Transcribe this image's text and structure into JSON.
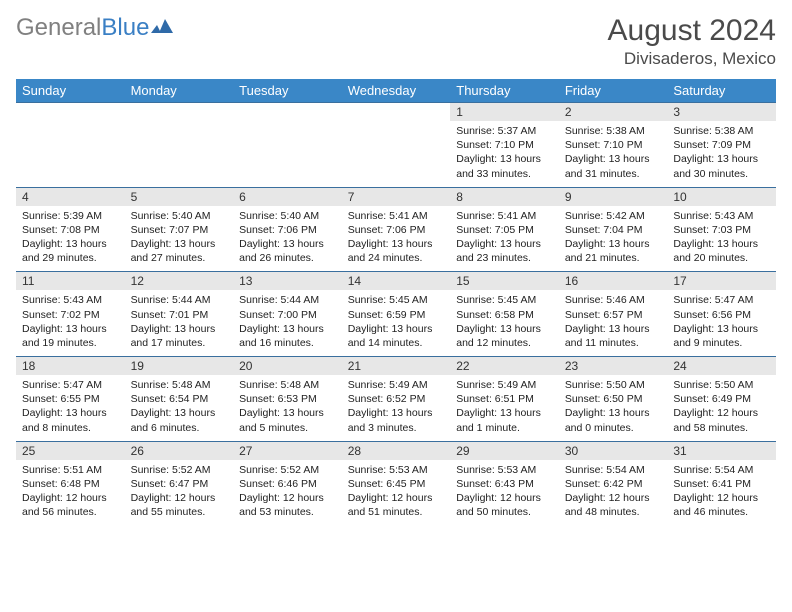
{
  "logo": {
    "text1": "General",
    "text2": "Blue"
  },
  "title": {
    "month": "August 2024",
    "location": "Divisaderos, Mexico"
  },
  "colors": {
    "header_bg": "#3a87c7",
    "header_fg": "#ffffff",
    "row_border": "#3a6f9e",
    "daynum_bg": "#e7e7e7",
    "logo_gray": "#808080",
    "logo_blue": "#3a7fc4"
  },
  "weekdays": [
    "Sunday",
    "Monday",
    "Tuesday",
    "Wednesday",
    "Thursday",
    "Friday",
    "Saturday"
  ],
  "weeks": [
    [
      {
        "n": "",
        "lines": []
      },
      {
        "n": "",
        "lines": []
      },
      {
        "n": "",
        "lines": []
      },
      {
        "n": "",
        "lines": []
      },
      {
        "n": "1",
        "lines": [
          "Sunrise: 5:37 AM",
          "Sunset: 7:10 PM",
          "Daylight: 13 hours",
          "and 33 minutes."
        ]
      },
      {
        "n": "2",
        "lines": [
          "Sunrise: 5:38 AM",
          "Sunset: 7:10 PM",
          "Daylight: 13 hours",
          "and 31 minutes."
        ]
      },
      {
        "n": "3",
        "lines": [
          "Sunrise: 5:38 AM",
          "Sunset: 7:09 PM",
          "Daylight: 13 hours",
          "and 30 minutes."
        ]
      }
    ],
    [
      {
        "n": "4",
        "lines": [
          "Sunrise: 5:39 AM",
          "Sunset: 7:08 PM",
          "Daylight: 13 hours",
          "and 29 minutes."
        ]
      },
      {
        "n": "5",
        "lines": [
          "Sunrise: 5:40 AM",
          "Sunset: 7:07 PM",
          "Daylight: 13 hours",
          "and 27 minutes."
        ]
      },
      {
        "n": "6",
        "lines": [
          "Sunrise: 5:40 AM",
          "Sunset: 7:06 PM",
          "Daylight: 13 hours",
          "and 26 minutes."
        ]
      },
      {
        "n": "7",
        "lines": [
          "Sunrise: 5:41 AM",
          "Sunset: 7:06 PM",
          "Daylight: 13 hours",
          "and 24 minutes."
        ]
      },
      {
        "n": "8",
        "lines": [
          "Sunrise: 5:41 AM",
          "Sunset: 7:05 PM",
          "Daylight: 13 hours",
          "and 23 minutes."
        ]
      },
      {
        "n": "9",
        "lines": [
          "Sunrise: 5:42 AM",
          "Sunset: 7:04 PM",
          "Daylight: 13 hours",
          "and 21 minutes."
        ]
      },
      {
        "n": "10",
        "lines": [
          "Sunrise: 5:43 AM",
          "Sunset: 7:03 PM",
          "Daylight: 13 hours",
          "and 20 minutes."
        ]
      }
    ],
    [
      {
        "n": "11",
        "lines": [
          "Sunrise: 5:43 AM",
          "Sunset: 7:02 PM",
          "Daylight: 13 hours",
          "and 19 minutes."
        ]
      },
      {
        "n": "12",
        "lines": [
          "Sunrise: 5:44 AM",
          "Sunset: 7:01 PM",
          "Daylight: 13 hours",
          "and 17 minutes."
        ]
      },
      {
        "n": "13",
        "lines": [
          "Sunrise: 5:44 AM",
          "Sunset: 7:00 PM",
          "Daylight: 13 hours",
          "and 16 minutes."
        ]
      },
      {
        "n": "14",
        "lines": [
          "Sunrise: 5:45 AM",
          "Sunset: 6:59 PM",
          "Daylight: 13 hours",
          "and 14 minutes."
        ]
      },
      {
        "n": "15",
        "lines": [
          "Sunrise: 5:45 AM",
          "Sunset: 6:58 PM",
          "Daylight: 13 hours",
          "and 12 minutes."
        ]
      },
      {
        "n": "16",
        "lines": [
          "Sunrise: 5:46 AM",
          "Sunset: 6:57 PM",
          "Daylight: 13 hours",
          "and 11 minutes."
        ]
      },
      {
        "n": "17",
        "lines": [
          "Sunrise: 5:47 AM",
          "Sunset: 6:56 PM",
          "Daylight: 13 hours",
          "and 9 minutes."
        ]
      }
    ],
    [
      {
        "n": "18",
        "lines": [
          "Sunrise: 5:47 AM",
          "Sunset: 6:55 PM",
          "Daylight: 13 hours",
          "and 8 minutes."
        ]
      },
      {
        "n": "19",
        "lines": [
          "Sunrise: 5:48 AM",
          "Sunset: 6:54 PM",
          "Daylight: 13 hours",
          "and 6 minutes."
        ]
      },
      {
        "n": "20",
        "lines": [
          "Sunrise: 5:48 AM",
          "Sunset: 6:53 PM",
          "Daylight: 13 hours",
          "and 5 minutes."
        ]
      },
      {
        "n": "21",
        "lines": [
          "Sunrise: 5:49 AM",
          "Sunset: 6:52 PM",
          "Daylight: 13 hours",
          "and 3 minutes."
        ]
      },
      {
        "n": "22",
        "lines": [
          "Sunrise: 5:49 AM",
          "Sunset: 6:51 PM",
          "Daylight: 13 hours",
          "and 1 minute."
        ]
      },
      {
        "n": "23",
        "lines": [
          "Sunrise: 5:50 AM",
          "Sunset: 6:50 PM",
          "Daylight: 13 hours",
          "and 0 minutes."
        ]
      },
      {
        "n": "24",
        "lines": [
          "Sunrise: 5:50 AM",
          "Sunset: 6:49 PM",
          "Daylight: 12 hours",
          "and 58 minutes."
        ]
      }
    ],
    [
      {
        "n": "25",
        "lines": [
          "Sunrise: 5:51 AM",
          "Sunset: 6:48 PM",
          "Daylight: 12 hours",
          "and 56 minutes."
        ]
      },
      {
        "n": "26",
        "lines": [
          "Sunrise: 5:52 AM",
          "Sunset: 6:47 PM",
          "Daylight: 12 hours",
          "and 55 minutes."
        ]
      },
      {
        "n": "27",
        "lines": [
          "Sunrise: 5:52 AM",
          "Sunset: 6:46 PM",
          "Daylight: 12 hours",
          "and 53 minutes."
        ]
      },
      {
        "n": "28",
        "lines": [
          "Sunrise: 5:53 AM",
          "Sunset: 6:45 PM",
          "Daylight: 12 hours",
          "and 51 minutes."
        ]
      },
      {
        "n": "29",
        "lines": [
          "Sunrise: 5:53 AM",
          "Sunset: 6:43 PM",
          "Daylight: 12 hours",
          "and 50 minutes."
        ]
      },
      {
        "n": "30",
        "lines": [
          "Sunrise: 5:54 AM",
          "Sunset: 6:42 PM",
          "Daylight: 12 hours",
          "and 48 minutes."
        ]
      },
      {
        "n": "31",
        "lines": [
          "Sunrise: 5:54 AM",
          "Sunset: 6:41 PM",
          "Daylight: 12 hours",
          "and 46 minutes."
        ]
      }
    ]
  ]
}
